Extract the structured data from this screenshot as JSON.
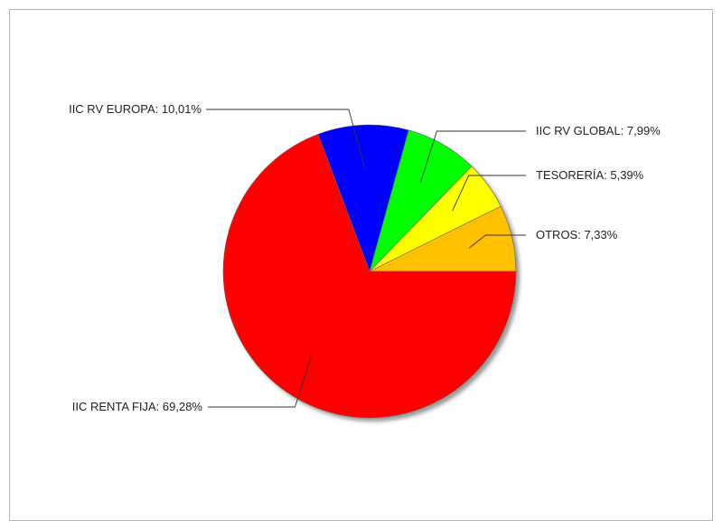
{
  "chart_data": {
    "type": "pie",
    "title": "",
    "start_angle_deg": 0,
    "direction": "counterclockwise",
    "slices": [
      {
        "label": "OTROS: 7,33%",
        "name": "OTROS",
        "value": 7.33,
        "color": "#ffc000",
        "label_side": "right"
      },
      {
        "label": "TESORERÍA: 5,39%",
        "name": "TESORERÍA",
        "value": 5.39,
        "color": "#ffff00",
        "label_side": "right"
      },
      {
        "label": "IIC RV GLOBAL: 7,99%",
        "name": "IIC RV GLOBAL",
        "value": 7.99,
        "color": "#00ff00",
        "label_side": "right"
      },
      {
        "label": "IIC RV EUROPA: 10,01%",
        "name": "IIC RV EUROPA",
        "value": 10.01,
        "color": "#0000ff",
        "label_side": "left"
      },
      {
        "label": "IIC RENTA FIJA: 69,28%",
        "name": "IIC RENTA FIJA",
        "value": 69.28,
        "color": "#ff0000",
        "label_side": "left"
      }
    ]
  }
}
